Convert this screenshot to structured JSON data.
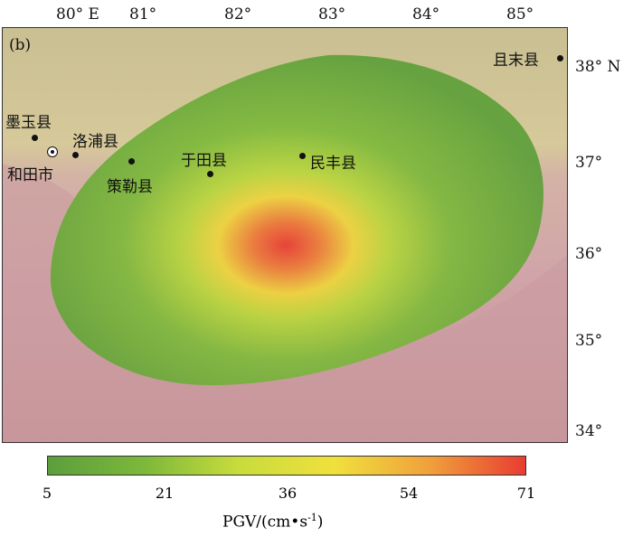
{
  "panel_label": "(b)",
  "top_axis": [
    "80° E",
    "81°",
    "82°",
    "83°",
    "84°",
    "85°"
  ],
  "right_axis": [
    "38° N",
    "37°",
    "36°",
    "35°",
    "34°"
  ],
  "cities": [
    {
      "name": "且末县",
      "type": "county"
    },
    {
      "name": "墨玉县",
      "type": "county"
    },
    {
      "name": "洛浦县",
      "type": "county"
    },
    {
      "name": "和田市",
      "type": "city"
    },
    {
      "name": "策勒县",
      "type": "county"
    },
    {
      "name": "于田县",
      "type": "county"
    },
    {
      "name": "民丰县",
      "type": "county"
    }
  ],
  "colorbar": {
    "ticks": [
      "5",
      "21",
      "36",
      "54",
      "71"
    ],
    "title": "PGV/(cm",
    "title_unit": "s",
    "title_exp": "-1",
    "title_close": ")",
    "colors": [
      "#5c9e3c",
      "#7cb83a",
      "#c8dc3c",
      "#f0e03c",
      "#f0a03c",
      "#e83c32"
    ]
  },
  "pgv_peak": 71
}
